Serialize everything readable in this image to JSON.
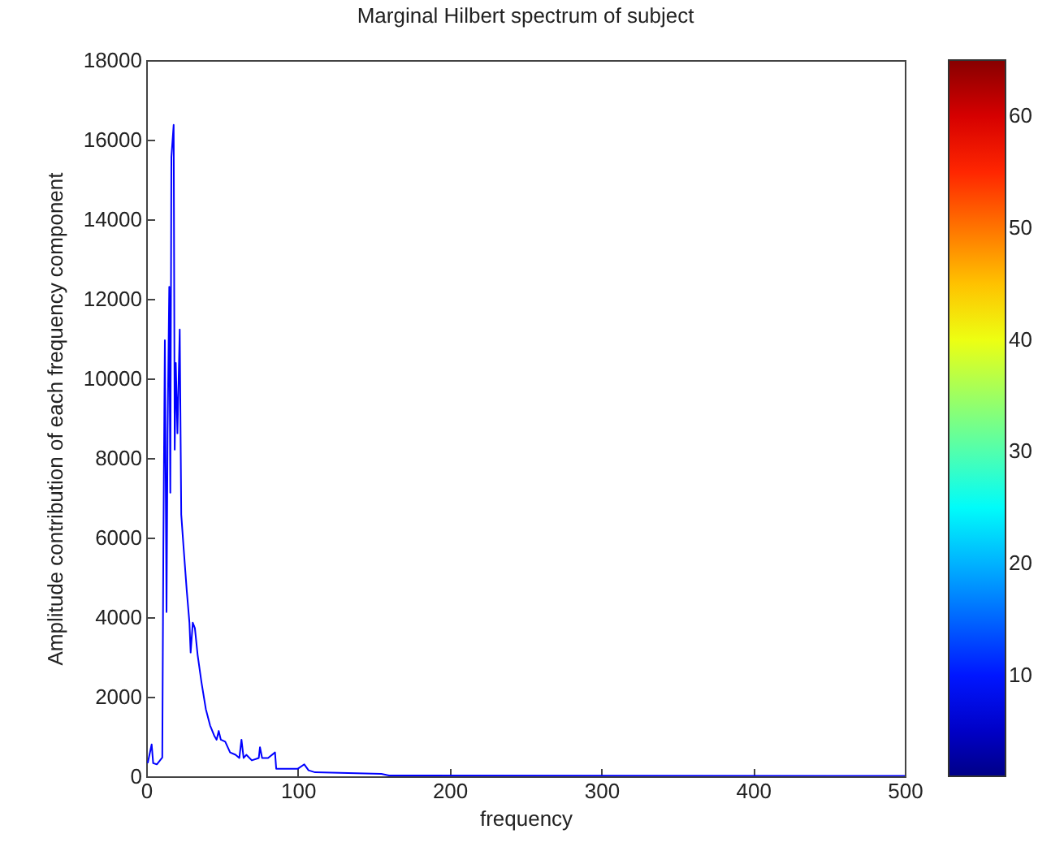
{
  "chart_data": {
    "type": "line",
    "title": "Marginal Hilbert spectrum of subject",
    "xlabel": "frequency",
    "ylabel": "Amplitude contribution of each frequency component",
    "x": [
      1,
      3.6,
      4.6,
      7,
      10.6,
      11.3,
      12.3,
      13.4,
      14.1,
      15.2,
      15.9,
      16.6,
      18.1,
      18.8,
      19.5,
      20.6,
      22.1,
      23.1,
      24.6,
      26.7,
      28.5,
      29.3,
      30.7,
      32.1,
      33.9,
      36.4,
      39.3,
      42.1,
      45,
      46.4,
      47.8,
      49.2,
      52.1,
      55.3,
      58.9,
      61.4,
      62.8,
      64.2,
      66,
      69.6,
      74.2,
      75,
      76.4,
      80.3,
      84.9,
      85.7,
      100,
      104.2,
      107,
      111.3,
      155,
      160,
      500
    ],
    "series": [
      {
        "color": "#0000ff",
        "values": [
          330,
          800,
          330,
          300,
          470,
          5700,
          10960,
          4130,
          8620,
          12300,
          7130,
          15560,
          16370,
          8210,
          10390,
          8620,
          11230,
          6580,
          5770,
          4680,
          3860,
          3110,
          3860,
          3720,
          3050,
          2370,
          1690,
          1280,
          1010,
          920,
          1140,
          920,
          870,
          600,
          540,
          460,
          920,
          460,
          540,
          400,
          460,
          730,
          460,
          460,
          600,
          190,
          190,
          300,
          150,
          100,
          60,
          20,
          10
        ]
      }
    ],
    "xlim": [
      0,
      500
    ],
    "xticks": [
      0,
      100,
      200,
      300,
      400,
      500
    ],
    "ylim": [
      0,
      18000
    ],
    "yticks": [
      0,
      2000,
      4000,
      6000,
      8000,
      10000,
      12000,
      14000,
      16000,
      18000
    ],
    "clim": [
      1,
      65
    ],
    "cticks": [
      10,
      20,
      30,
      40,
      50,
      60
    ],
    "grid": false,
    "line_style": "solid"
  }
}
